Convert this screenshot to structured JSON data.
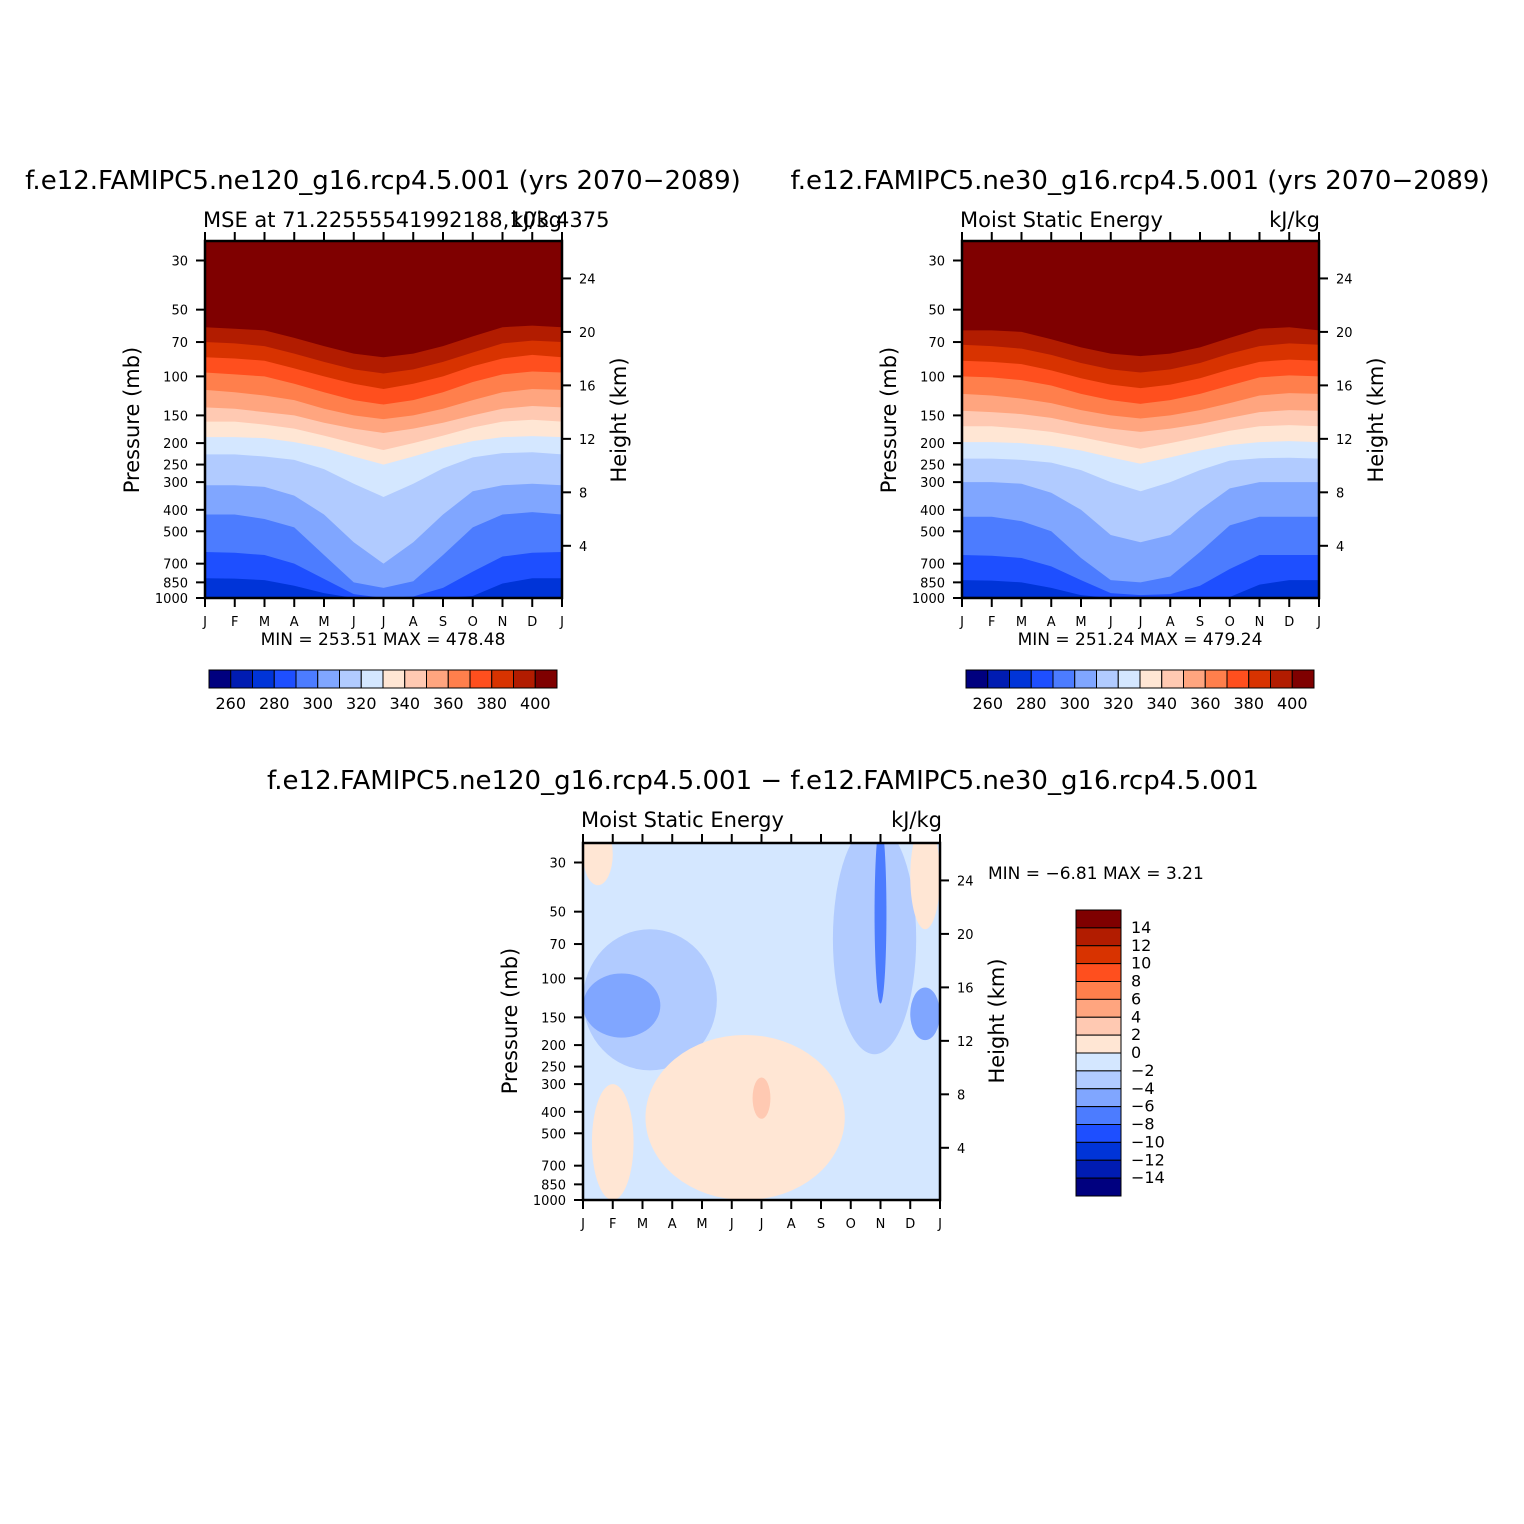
{
  "colors": {
    "levels16": [
      "#00007f",
      "#001cb2",
      "#0034d8",
      "#1e4fff",
      "#4c7cff",
      "#80a6ff",
      "#b1cbff",
      "#d4e7ff",
      "#ffe6d4",
      "#ffc9b2",
      "#ffa57f",
      "#ff7f4c",
      "#ff4f1e",
      "#d83300",
      "#b21c00",
      "#7f0000"
    ]
  },
  "chart_data": [
    {
      "type": "contour",
      "title": "f.e12.FAMIPC5.ne120_g16.rcp4.5.001 (yrs 2070−2089)",
      "left_label": "MSE at 71.22555541992188,103.4375",
      "right_label": "kJ/kg",
      "xlabel": "",
      "ylabel": "Pressure (mb)",
      "y2label": "Height (km)",
      "x_ticks": [
        "J",
        "F",
        "M",
        "A",
        "M",
        "J",
        "J",
        "A",
        "S",
        "O",
        "N",
        "D",
        "J"
      ],
      "y_ticks": [
        "30",
        "50",
        "70",
        "100",
        "150",
        "200",
        "250",
        "300",
        "400",
        "500",
        "700",
        "850",
        "1000"
      ],
      "y2_ticks": [
        "24",
        "20",
        "16",
        "12",
        "8",
        "4"
      ],
      "min_max_text": "MIN = 253.51  MAX = 478.48",
      "colorbar_labels": [
        "260",
        "280",
        "300",
        "320",
        "340",
        "360",
        "380",
        "400"
      ],
      "contour_levels": [
        260,
        270,
        280,
        290,
        300,
        310,
        320,
        330,
        340,
        350,
        360,
        370,
        380,
        390,
        400
      ],
      "boundaries_mb": [
        [
          999,
          999,
          995,
          999,
          1000,
          1000,
          1000,
          1000,
          1000,
          1000,
          999,
          997,
          999
        ],
        [
          990,
          992,
          993,
          997,
          1000,
          1000,
          1000,
          1000,
          1000,
          1000,
          994,
          990,
          990
        ],
        [
          815,
          818,
          830,
          880,
          950,
          1000,
          1000,
          1000,
          1000,
          980,
          860,
          815,
          815
        ],
        [
          620,
          625,
          640,
          700,
          820,
          960,
          1000,
          985,
          900,
          760,
          650,
          625,
          620
        ],
        [
          420,
          420,
          440,
          480,
          640,
          850,
          900,
          840,
          640,
          480,
          420,
          410,
          420
        ],
        [
          310,
          310,
          315,
          345,
          420,
          560,
          700,
          560,
          420,
          330,
          310,
          305,
          310
        ],
        [
          225,
          225,
          230,
          238,
          262,
          305,
          350,
          305,
          260,
          232,
          222,
          220,
          225
        ],
        [
          188,
          188,
          190,
          198,
          210,
          230,
          250,
          230,
          210,
          196,
          188,
          186,
          188
        ],
        [
          160,
          160,
          165,
          172,
          185,
          200,
          215,
          200,
          185,
          170,
          160,
          157,
          160
        ],
        [
          138,
          140,
          145,
          150,
          162,
          172,
          180,
          172,
          162,
          150,
          140,
          136,
          138
        ],
        [
          115,
          118,
          122,
          128,
          140,
          150,
          156,
          150,
          140,
          128,
          118,
          114,
          115
        ],
        [
          96,
          98,
          100,
          108,
          118,
          128,
          134,
          128,
          118,
          106,
          98,
          95,
          96
        ],
        [
          82,
          83,
          85,
          92,
          100,
          108,
          114,
          108,
          100,
          90,
          83,
          80,
          82
        ],
        [
          70,
          71,
          73,
          79,
          86,
          93,
          97,
          93,
          86,
          78,
          71,
          69,
          70
        ],
        [
          60,
          61,
          62,
          67,
          73,
          79,
          82,
          79,
          73,
          66,
          60,
          59,
          60
        ]
      ]
    },
    {
      "type": "contour",
      "title": "f.e12.FAMIPC5.ne30_g16.rcp4.5.001 (yrs 2070−2089)",
      "left_label": "Moist Static Energy",
      "right_label": "kJ/kg",
      "xlabel": "",
      "ylabel": "Pressure (mb)",
      "y2label": "Height (km)",
      "x_ticks": [
        "J",
        "F",
        "M",
        "A",
        "M",
        "J",
        "J",
        "A",
        "S",
        "O",
        "N",
        "D",
        "J"
      ],
      "y_ticks": [
        "30",
        "50",
        "70",
        "100",
        "150",
        "200",
        "250",
        "300",
        "400",
        "500",
        "700",
        "850",
        "1000"
      ],
      "y2_ticks": [
        "24",
        "20",
        "16",
        "12",
        "8",
        "4"
      ],
      "min_max_text": "MIN = 251.24  MAX = 479.24",
      "colorbar_labels": [
        "260",
        "280",
        "300",
        "320",
        "340",
        "360",
        "380",
        "400"
      ],
      "contour_levels": [
        260,
        270,
        280,
        290,
        300,
        310,
        320,
        330,
        340,
        350,
        360,
        370,
        380,
        390,
        400
      ],
      "boundaries_mb": [
        [
          999,
          999,
          996,
          999,
          1000,
          1000,
          1000,
          1000,
          1000,
          1000,
          999,
          997,
          999
        ],
        [
          985,
          988,
          990,
          996,
          1000,
          1000,
          1000,
          1000,
          1000,
          1000,
          992,
          988,
          988
        ],
        [
          830,
          835,
          850,
          900,
          970,
          1000,
          1000,
          1000,
          1000,
          990,
          870,
          830,
          830
        ],
        [
          640,
          645,
          660,
          720,
          830,
          950,
          970,
          960,
          880,
          740,
          640,
          640,
          640
        ],
        [
          430,
          430,
          450,
          500,
          660,
          830,
          850,
          800,
          620,
          470,
          430,
          430,
          430
        ],
        [
          300,
          300,
          305,
          335,
          400,
          520,
          560,
          520,
          400,
          320,
          300,
          300,
          300
        ],
        [
          235,
          235,
          238,
          245,
          265,
          300,
          330,
          300,
          265,
          240,
          234,
          233,
          235
        ],
        [
          198,
          198,
          200,
          206,
          216,
          232,
          248,
          232,
          216,
          204,
          198,
          196,
          198
        ],
        [
          168,
          168,
          172,
          178,
          188,
          200,
          212,
          200,
          188,
          176,
          168,
          166,
          168
        ],
        [
          143,
          145,
          148,
          154,
          164,
          172,
          178,
          172,
          164,
          154,
          145,
          142,
          143
        ],
        [
          120,
          122,
          126,
          132,
          142,
          150,
          155,
          150,
          142,
          132,
          122,
          119,
          120
        ],
        [
          100,
          101,
          104,
          110,
          120,
          128,
          133,
          128,
          120,
          110,
          101,
          99,
          100
        ],
        [
          85,
          86,
          88,
          94,
          102,
          109,
          113,
          109,
          102,
          93,
          86,
          84,
          85
        ],
        [
          72,
          73,
          75,
          80,
          87,
          93,
          96,
          93,
          87,
          79,
          73,
          71,
          72
        ],
        [
          62,
          62,
          63,
          68,
          74,
          79,
          81,
          79,
          74,
          67,
          61,
          60,
          62
        ]
      ]
    },
    {
      "type": "contour",
      "title": "f.e12.FAMIPC5.ne120_g16.rcp4.5.001 − f.e12.FAMIPC5.ne30_g16.rcp4.5.001",
      "left_label": "Moist Static Energy",
      "right_label": "kJ/kg",
      "xlabel": "",
      "ylabel": "Pressure (mb)",
      "y2label": "Height (km)",
      "x_ticks": [
        "J",
        "F",
        "M",
        "A",
        "M",
        "J",
        "J",
        "A",
        "S",
        "O",
        "N",
        "D",
        "J"
      ],
      "y_ticks": [
        "30",
        "50",
        "70",
        "100",
        "150",
        "200",
        "250",
        "300",
        "400",
        "500",
        "700",
        "850",
        "1000"
      ],
      "y2_ticks": [
        "24",
        "20",
        "16",
        "12",
        "8",
        "4"
      ],
      "min_max_text": "MIN =    −6.81  MAX =     3.21",
      "colorbar_labels": [
        "14",
        "12",
        "10",
        "8",
        "6",
        "4",
        "2",
        "0",
        "−2",
        "−4",
        "−6",
        "−8",
        "−10",
        "−12",
        "−14"
      ],
      "contour_levels": [
        -14,
        -12,
        -10,
        -8,
        -6,
        -4,
        -2,
        0,
        2,
        4,
        6,
        8,
        10,
        12,
        14
      ],
      "regions": [
        {
          "level": "0 to 2",
          "months": [
            0,
            1
          ],
          "pressure_mb": [
            20,
            38
          ]
        },
        {
          "level": "−2 to −4",
          "months": [
            0,
            4.5
          ],
          "pressure_mb": [
            60,
            260
          ]
        },
        {
          "level": "−4 to −6",
          "months": [
            0,
            2.6
          ],
          "pressure_mb": [
            95,
            185
          ]
        },
        {
          "level": "0 to 2",
          "months": [
            0.3,
            1.7
          ],
          "pressure_mb": [
            300,
            1000
          ]
        },
        {
          "level": "0 to 2",
          "months": [
            2.1,
            8.8
          ],
          "pressure_mb": [
            180,
            1000
          ]
        },
        {
          "level": "2 to 4",
          "months": [
            5.7,
            6.3
          ],
          "pressure_mb": [
            280,
            430
          ]
        },
        {
          "level": "−2 to −4",
          "months": [
            8.4,
            11.2
          ],
          "pressure_mb": [
            20,
            220
          ]
        },
        {
          "level": "−6 to −8",
          "months": [
            9.8,
            10.2
          ],
          "pressure_mb": [
            20,
            130
          ]
        },
        {
          "level": "−4 to −6",
          "months": [
            11,
            12
          ],
          "pressure_mb": [
            110,
            190
          ]
        },
        {
          "level": "0 to 2",
          "months": [
            11,
            12
          ],
          "pressure_mb": [
            20,
            60
          ]
        }
      ]
    }
  ]
}
